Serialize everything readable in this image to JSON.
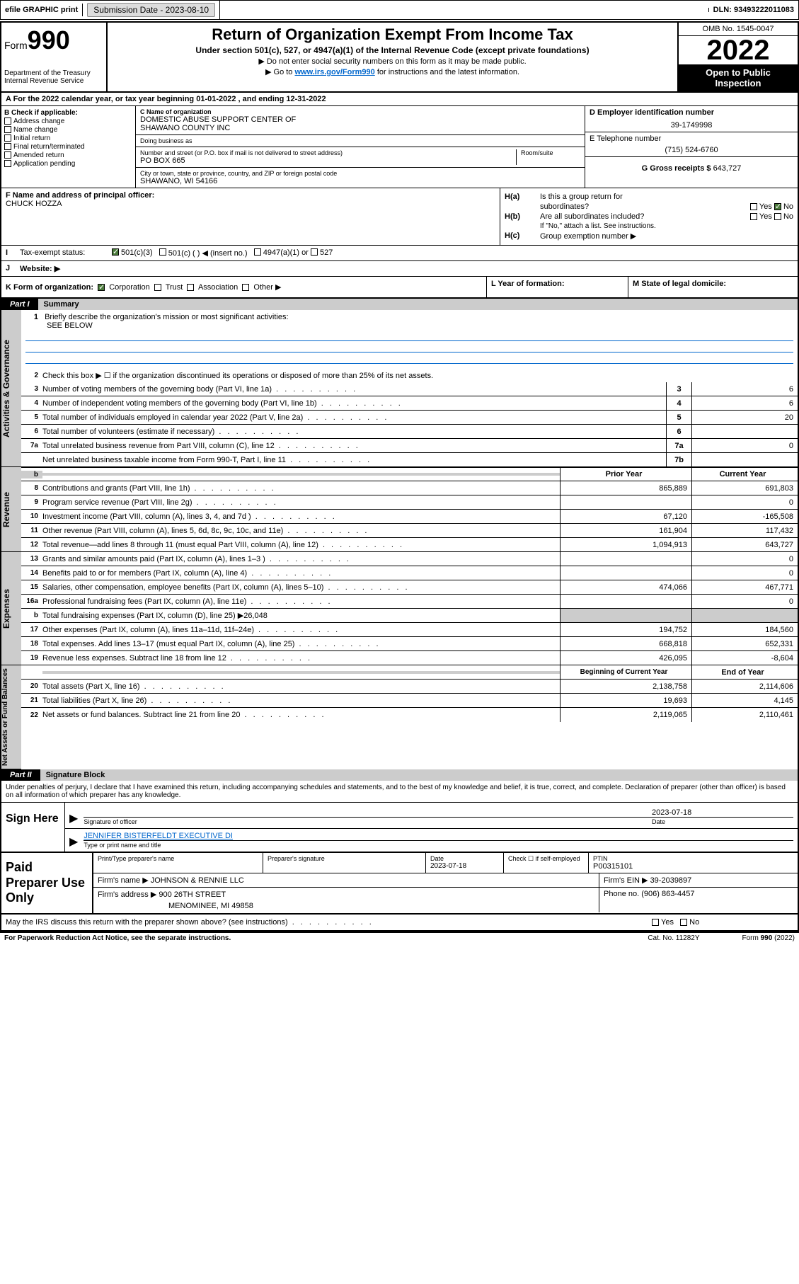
{
  "topbar": {
    "efile": "efile GRAPHIC print",
    "submission_label": "Submission Date - ",
    "submission_date": "2023-08-10",
    "dln_label": "DLN: ",
    "dln": "93493222011083"
  },
  "header": {
    "form_word": "Form",
    "form_num": "990",
    "dept": "Department of the Treasury",
    "irs": "Internal Revenue Service",
    "title": "Return of Organization Exempt From Income Tax",
    "sub": "Under section 501(c), 527, or 4947(a)(1) of the Internal Revenue Code (except private foundations)",
    "note1": "▶ Do not enter social security numbers on this form as it may be made public.",
    "note2_pre": "▶ Go to ",
    "note2_link": "www.irs.gov/Form990",
    "note2_post": " for instructions and the latest information.",
    "omb": "OMB No. 1545-0047",
    "year": "2022",
    "open": "Open to Public Inspection"
  },
  "rowA": {
    "text_pre": "A For the 2022 calendar year, or tax year beginning ",
    "begin": "01-01-2022",
    "mid": "  , and ending ",
    "end": "12-31-2022"
  },
  "colB": {
    "hdr": "B Check if applicable:",
    "items": [
      "Address change",
      "Name change",
      "Initial return",
      "Final return/terminated",
      "Amended return",
      "Application pending"
    ]
  },
  "colC": {
    "name_lbl": "C Name of organization",
    "name1": "DOMESTIC ABUSE SUPPORT CENTER OF",
    "name2": "SHAWANO COUNTY INC",
    "dba_lbl": "Doing business as",
    "addr_lbl": "Number and street (or P.O. box if mail is not delivered to street address)",
    "room_lbl": "Room/suite",
    "addr": "PO BOX 665",
    "city_lbl": "City or town, state or province, country, and ZIP or foreign postal code",
    "city": "SHAWANO, WI  54166"
  },
  "colD": {
    "lbl": "D Employer identification number",
    "val": "39-1749998"
  },
  "colE": {
    "lbl": "E Telephone number",
    "val": "(715) 524-6760"
  },
  "colG": {
    "lbl": "G Gross receipts $ ",
    "val": "643,727"
  },
  "rowF": {
    "lbl": "F Name and address of principal officer:",
    "name": "CHUCK HOZZA"
  },
  "rowH": {
    "a_lbl": "H(a)",
    "a_txt": "Is this a group return for",
    "a_txt2": "subordinates?",
    "b_lbl": "H(b)",
    "b_txt": "Are all subordinates included?",
    "b_note": "If \"No,\" attach a list. See instructions.",
    "c_lbl": "H(c)",
    "c_txt": "Group exemption number ▶",
    "yes": "Yes",
    "no": "No"
  },
  "rowI": {
    "lbl": "I",
    "txt": "Tax-exempt status:",
    "opt1": "501(c)(3)",
    "opt2": "501(c) (  ) ◀ (insert no.)",
    "opt3": "4947(a)(1) or",
    "opt4": "527"
  },
  "rowJ": {
    "lbl": "J",
    "txt": "Website: ▶"
  },
  "rowK": {
    "k_txt": "K Form of organization:",
    "opts": [
      "Corporation",
      "Trust",
      "Association",
      "Other ▶"
    ],
    "l_txt": "L Year of formation:",
    "m_txt": "M State of legal domicile:"
  },
  "part1": {
    "num": "Part I",
    "title": "Summary"
  },
  "sidelabels": {
    "gov": "Activities & Governance",
    "rev": "Revenue",
    "exp": "Expenses",
    "net": "Net Assets or Fund Balances"
  },
  "q1": {
    "num": "1",
    "txt": "Briefly describe the organization's mission or most significant activities:",
    "val": "SEE BELOW"
  },
  "q2": {
    "num": "2",
    "txt": "Check this box ▶ ☐ if the organization discontinued its operations or disposed of more than 25% of its net assets."
  },
  "lines": [
    {
      "num": "3",
      "txt": "Number of voting members of the governing body (Part VI, line 1a)",
      "box": "3",
      "v2": "6"
    },
    {
      "num": "4",
      "txt": "Number of independent voting members of the governing body (Part VI, line 1b)",
      "box": "4",
      "v2": "6"
    },
    {
      "num": "5",
      "txt": "Total number of individuals employed in calendar year 2022 (Part V, line 2a)",
      "box": "5",
      "v2": "20"
    },
    {
      "num": "6",
      "txt": "Total number of volunteers (estimate if necessary)",
      "box": "6",
      "v2": ""
    },
    {
      "num": "7a",
      "txt": "Total unrelated business revenue from Part VIII, column (C), line 12",
      "box": "7a",
      "v2": "0"
    },
    {
      "num": "",
      "txt": "Net unrelated business taxable income from Form 990-T, Part I, line 11",
      "box": "7b",
      "v2": ""
    }
  ],
  "colhdrs": {
    "num": "b",
    "prior": "Prior Year",
    "current": "Current Year"
  },
  "revenue": [
    {
      "num": "8",
      "txt": "Contributions and grants (Part VIII, line 1h)",
      "v1": "865,889",
      "v2": "691,803"
    },
    {
      "num": "9",
      "txt": "Program service revenue (Part VIII, line 2g)",
      "v1": "",
      "v2": "0"
    },
    {
      "num": "10",
      "txt": "Investment income (Part VIII, column (A), lines 3, 4, and 7d )",
      "v1": "67,120",
      "v2": "-165,508"
    },
    {
      "num": "11",
      "txt": "Other revenue (Part VIII, column (A), lines 5, 6d, 8c, 9c, 10c, and 11e)",
      "v1": "161,904",
      "v2": "117,432"
    },
    {
      "num": "12",
      "txt": "Total revenue—add lines 8 through 11 (must equal Part VIII, column (A), line 12)",
      "v1": "1,094,913",
      "v2": "643,727"
    }
  ],
  "expenses": [
    {
      "num": "13",
      "txt": "Grants and similar amounts paid (Part IX, column (A), lines 1–3 )",
      "v1": "",
      "v2": "0"
    },
    {
      "num": "14",
      "txt": "Benefits paid to or for members (Part IX, column (A), line 4)",
      "v1": "",
      "v2": "0"
    },
    {
      "num": "15",
      "txt": "Salaries, other compensation, employee benefits (Part IX, column (A), lines 5–10)",
      "v1": "474,066",
      "v2": "467,771"
    },
    {
      "num": "16a",
      "txt": "Professional fundraising fees (Part IX, column (A), line 11e)",
      "v1": "",
      "v2": "0"
    },
    {
      "num": "b",
      "txt": "Total fundraising expenses (Part IX, column (D), line 25) ▶26,048",
      "shade": true
    },
    {
      "num": "17",
      "txt": "Other expenses (Part IX, column (A), lines 11a–11d, 11f–24e)",
      "v1": "194,752",
      "v2": "184,560"
    },
    {
      "num": "18",
      "txt": "Total expenses. Add lines 13–17 (must equal Part IX, column (A), line 25)",
      "v1": "668,818",
      "v2": "652,331"
    },
    {
      "num": "19",
      "txt": "Revenue less expenses. Subtract line 18 from line 12",
      "v1": "426,095",
      "v2": "-8,604"
    }
  ],
  "nethdrs": {
    "begin": "Beginning of Current Year",
    "end": "End of Year"
  },
  "netassets": [
    {
      "num": "20",
      "txt": "Total assets (Part X, line 16)",
      "v1": "2,138,758",
      "v2": "2,114,606"
    },
    {
      "num": "21",
      "txt": "Total liabilities (Part X, line 26)",
      "v1": "19,693",
      "v2": "4,145"
    },
    {
      "num": "22",
      "txt": "Net assets or fund balances. Subtract line 21 from line 20",
      "v1": "2,119,065",
      "v2": "2,110,461"
    }
  ],
  "part2": {
    "num": "Part II",
    "title": "Signature Block"
  },
  "sig": {
    "penalty": "Under penalties of perjury, I declare that I have examined this return, including accompanying schedules and statements, and to the best of my knowledge and belief, it is true, correct, and complete. Declaration of preparer (other than officer) is based on all information of which preparer has any knowledge.",
    "here": "Sign Here",
    "sig_officer": "Signature of officer",
    "date_lbl": "Date",
    "date_val": "2023-07-18",
    "name": "JENNIFER BISTERFELDT  EXECUTIVE DI",
    "name_lbl": "Type or print name and title"
  },
  "paid": {
    "title": "Paid Preparer Use Only",
    "h_print": "Print/Type preparer's name",
    "h_sig": "Preparer's signature",
    "h_date": "Date",
    "date_val": "2023-07-18",
    "h_check": "Check ☐ if self-employed",
    "h_ptin": "PTIN",
    "ptin_val": "P00315101",
    "firm_name_lbl": "Firm's name    ▶ ",
    "firm_name": "JOHNSON & RENNIE LLC",
    "firm_ein_lbl": "Firm's EIN ▶ ",
    "firm_ein": "39-2039897",
    "firm_addr_lbl": "Firm's address ▶ ",
    "firm_addr1": "900 26TH STREET",
    "firm_addr2": "MENOMINEE, MI  49858",
    "phone_lbl": "Phone no. ",
    "phone": "(906) 863-4457"
  },
  "may": {
    "txt": "May the IRS discuss this return with the preparer shown above? (see instructions)",
    "yes": "Yes",
    "no": "No"
  },
  "footer": {
    "left": "For Paperwork Reduction Act Notice, see the separate instructions.",
    "mid": "Cat. No. 11282Y",
    "right_pre": "Form ",
    "right_bold": "990",
    "right_post": " (2022)"
  }
}
